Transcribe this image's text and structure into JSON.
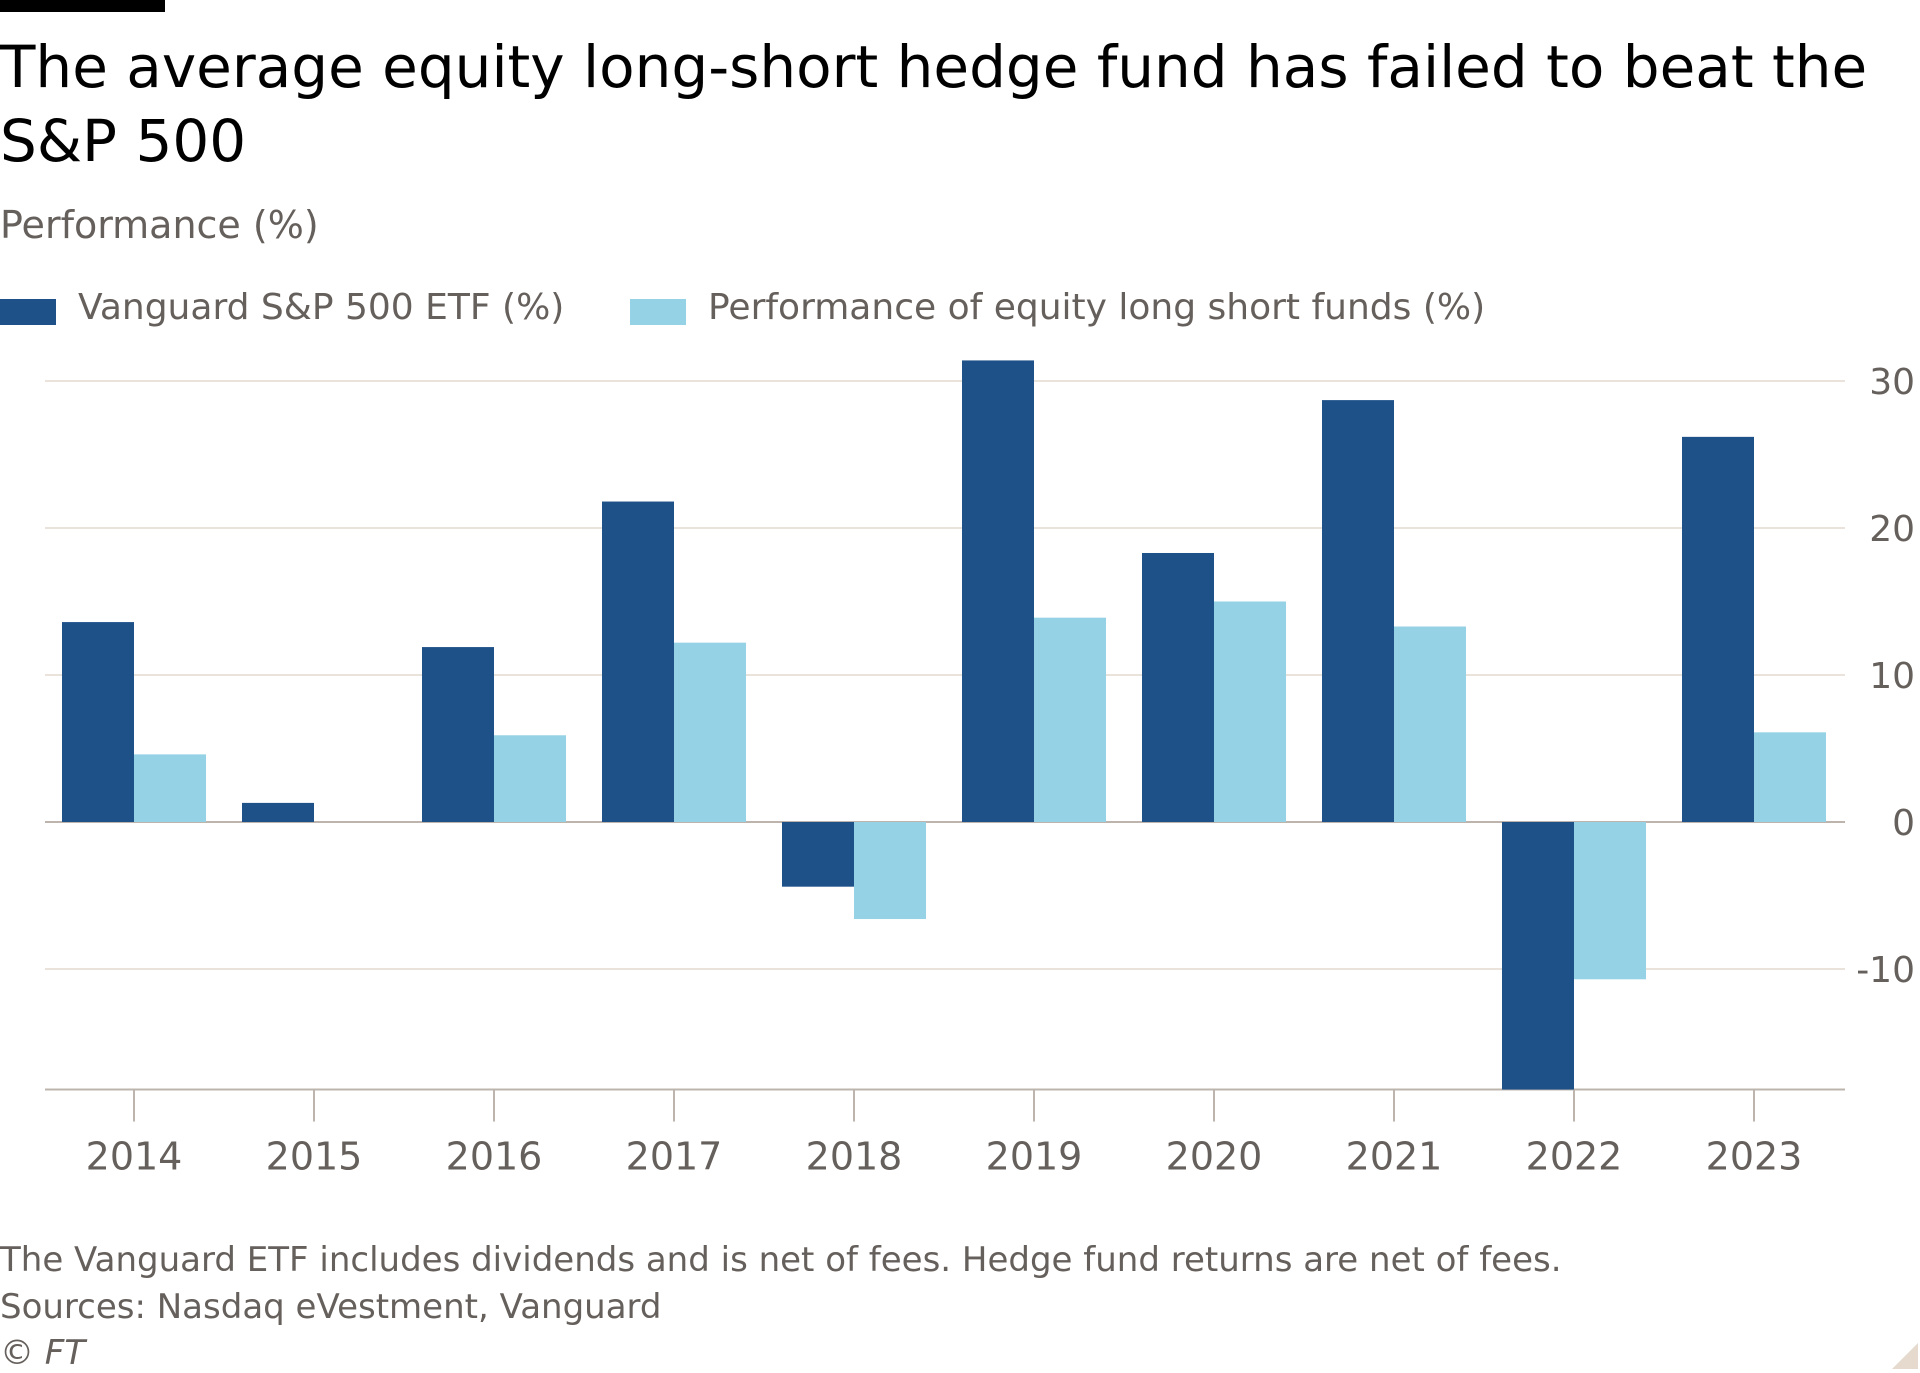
{
  "title": "The average equity long-short hedge fund has failed to beat the S&P 500",
  "subtitle": "Performance (%)",
  "footer": {
    "note": "The Vanguard ETF includes dividends and is net of fees. Hedge fund returns are net of fees.",
    "sources": "Sources: Nasdaq eVestment, Vanguard",
    "copyright": "© FT"
  },
  "colors": {
    "series1": "#1f5189",
    "series2": "#96d2e6",
    "grid": "#e9e3dc",
    "axis": "#66605c"
  },
  "chart_data": {
    "type": "bar",
    "categories": [
      "2014",
      "2015",
      "2016",
      "2017",
      "2018",
      "2019",
      "2020",
      "2021",
      "2022",
      "2023"
    ],
    "series": [
      {
        "name": "Vanguard S&P 500 ETF (%)",
        "values": [
          13.6,
          1.3,
          11.9,
          21.8,
          -4.4,
          31.4,
          18.3,
          28.7,
          -18.2,
          26.2
        ]
      },
      {
        "name": "Performance of equity long short funds (%)",
        "values": [
          4.6,
          0,
          5.9,
          12.2,
          -6.6,
          13.9,
          15.0,
          13.3,
          -10.7,
          6.1
        ]
      }
    ],
    "ylim": [
      -18.2,
      32
    ],
    "yticks": [
      -10,
      0,
      10,
      20,
      30
    ],
    "yaxis_side": "right",
    "grid": true,
    "legend_position": "top-left"
  }
}
